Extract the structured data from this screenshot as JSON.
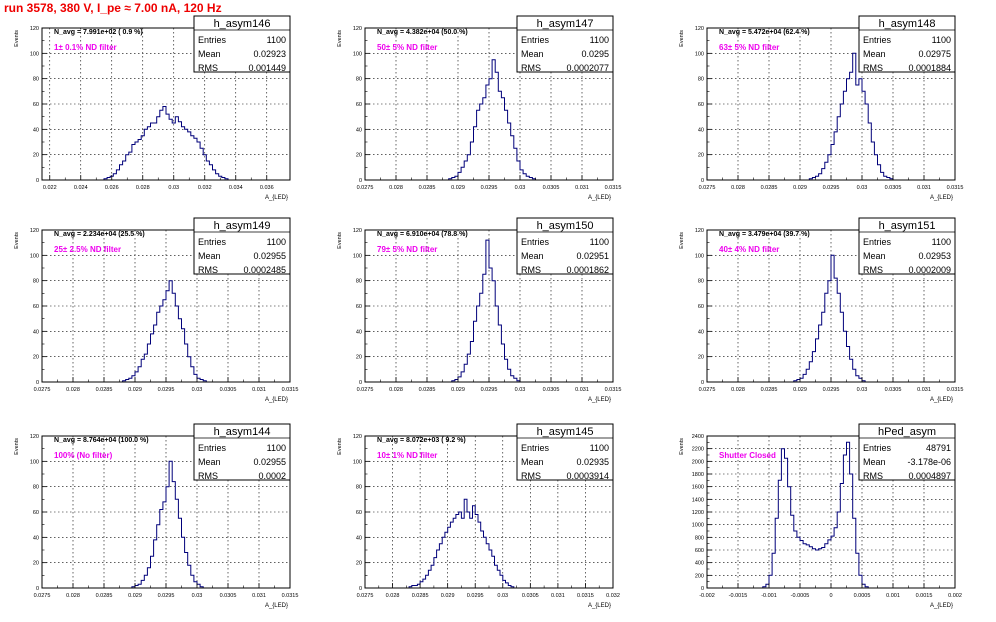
{
  "page": {
    "title": "run 3578,   380 V, I_pe ≈ 7.00 nA, 120 Hz"
  },
  "style": {
    "histogram_color": "#00007a",
    "frame_color": "#000000",
    "grid_color": "#000000",
    "title_color": "#ee0000",
    "annotation_color": "#ee00ee",
    "background": "#ffffff"
  },
  "chart_data": [
    {
      "type": "histogram",
      "name": "h_asym146",
      "stats": {
        "Entries": "1100",
        "Mean": "0.02923",
        "RMS": "0.001449"
      },
      "navg": "N_avg = 7.991e+02 ( 0.9 %)",
      "note": "1± 0.1% ND filter",
      "xlabel": "A_{LED}",
      "ylabel": "Events",
      "xlim": [
        0.0215,
        0.0375
      ],
      "ylim": [
        0,
        120
      ],
      "xticks": [
        0.022,
        0.024,
        0.026,
        0.028,
        0.03,
        0.032,
        0.034,
        0.036
      ],
      "xticklabels": [
        "0.022",
        "0.024",
        "0.026",
        "0.028",
        "0.03",
        "0.032",
        "0.034",
        "0.036"
      ],
      "yticks": [
        0,
        20,
        40,
        60,
        80,
        100,
        120
      ],
      "grid": true,
      "bins_start": 0.0255,
      "bins_width": 0.0002,
      "values": [
        1,
        2,
        3,
        5,
        8,
        12,
        15,
        20,
        22,
        28,
        30,
        32,
        35,
        40,
        42,
        45,
        45,
        50,
        55,
        58,
        52,
        48,
        45,
        50,
        46,
        42,
        40,
        38,
        35,
        33,
        30,
        25,
        20,
        15,
        12,
        8,
        5,
        3,
        2,
        1
      ]
    },
    {
      "type": "histogram",
      "name": "h_asym147",
      "stats": {
        "Entries": "1100",
        "Mean": "0.0295",
        "RMS": "0.0002077"
      },
      "navg": "N_avg = 4.382e+04 (50.0 %)",
      "note": "50± 5% ND filter",
      "xlabel": "A_{LED}",
      "ylabel": "Events",
      "xlim": [
        0.0275,
        0.0315
      ],
      "ylim": [
        0,
        120
      ],
      "xticks": [
        0.0275,
        0.028,
        0.0285,
        0.029,
        0.0295,
        0.03,
        0.0305,
        0.031,
        0.0315
      ],
      "xticklabels": [
        "0.0275",
        "0.028",
        "0.0285",
        "0.029",
        "0.0295",
        "0.03",
        "0.0305",
        "0.031",
        "0.0315"
      ],
      "yticks": [
        0,
        20,
        40,
        60,
        80,
        100,
        120
      ],
      "grid": true,
      "bins_start": 0.02885,
      "bins_width": 5e-05,
      "values": [
        1,
        2,
        3,
        6,
        10,
        15,
        20,
        30,
        42,
        55,
        60,
        65,
        75,
        80,
        95,
        85,
        70,
        65,
        55,
        45,
        35,
        25,
        15,
        8,
        5,
        3,
        2,
        1
      ]
    },
    {
      "type": "histogram",
      "name": "h_asym148",
      "stats": {
        "Entries": "1100",
        "Mean": "0.02975",
        "RMS": "0.0001884"
      },
      "navg": "N_avg = 5.472e+04 (62.4 %)",
      "note": "63± 5% ND filter",
      "xlabel": "A_{LED}",
      "ylabel": "Events",
      "xlim": [
        0.0275,
        0.0315
      ],
      "ylim": [
        0,
        120
      ],
      "xticks": [
        0.0275,
        0.028,
        0.0285,
        0.029,
        0.0295,
        0.03,
        0.0305,
        0.031,
        0.0315
      ],
      "xticklabels": [
        "0.0275",
        "0.028",
        "0.0285",
        "0.029",
        "0.0295",
        "0.03",
        "0.0305",
        "0.031",
        "0.0315"
      ],
      "yticks": [
        0,
        20,
        40,
        60,
        80,
        100,
        120
      ],
      "grid": true,
      "bins_start": 0.02915,
      "bins_width": 5e-05,
      "values": [
        1,
        2,
        3,
        5,
        9,
        14,
        20,
        28,
        38,
        50,
        60,
        70,
        80,
        85,
        100,
        75,
        80,
        70,
        60,
        45,
        30,
        20,
        12,
        6,
        3,
        2,
        1
      ]
    },
    {
      "type": "histogram",
      "name": "h_asym149",
      "stats": {
        "Entries": "1100",
        "Mean": "0.02955",
        "RMS": "0.0002485"
      },
      "navg": "N_avg = 2.234e+04 (25.5 %)",
      "note": "25± 2.5% ND filter",
      "xlabel": "A_{LED}",
      "ylabel": "Events",
      "xlim": [
        0.0275,
        0.0315
      ],
      "ylim": [
        0,
        120
      ],
      "xticks": [
        0.0275,
        0.028,
        0.0285,
        0.029,
        0.0295,
        0.03,
        0.0305,
        0.031,
        0.0315
      ],
      "xticklabels": [
        "0.0275",
        "0.028",
        "0.0285",
        "0.029",
        "0.0295",
        "0.03",
        "0.0305",
        "0.031",
        "0.0315"
      ],
      "yticks": [
        0,
        20,
        40,
        60,
        80,
        100,
        120
      ],
      "grid": true,
      "bins_start": 0.0288,
      "bins_width": 5e-05,
      "values": [
        1,
        2,
        3,
        5,
        8,
        12,
        18,
        22,
        30,
        38,
        45,
        55,
        60,
        65,
        72,
        80,
        70,
        60,
        50,
        42,
        30,
        20,
        12,
        6,
        3,
        2,
        1
      ]
    },
    {
      "type": "histogram",
      "name": "h_asym150",
      "stats": {
        "Entries": "1100",
        "Mean": "0.02951",
        "RMS": "0.0001862"
      },
      "navg": "N_avg = 6.910e+04 (78.8 %)",
      "note": "79± 5% ND filter",
      "xlabel": "A_{LED}",
      "ylabel": "Events",
      "xlim": [
        0.0275,
        0.0315
      ],
      "ylim": [
        0,
        120
      ],
      "xticks": [
        0.0275,
        0.028,
        0.0285,
        0.029,
        0.0295,
        0.03,
        0.0305,
        0.031,
        0.0315
      ],
      "xticklabels": [
        "0.0275",
        "0.028",
        "0.0285",
        "0.029",
        "0.0295",
        "0.03",
        "0.0305",
        "0.031",
        "0.0315"
      ],
      "yticks": [
        0,
        20,
        40,
        60,
        80,
        100,
        120
      ],
      "grid": true,
      "bins_start": 0.0289,
      "bins_width": 5e-05,
      "values": [
        1,
        2,
        4,
        8,
        14,
        22,
        32,
        48,
        60,
        70,
        85,
        112,
        90,
        80,
        60,
        45,
        30,
        18,
        10,
        5,
        3,
        1
      ]
    },
    {
      "type": "histogram",
      "name": "h_asym151",
      "stats": {
        "Entries": "1100",
        "Mean": "0.02953",
        "RMS": "0.0002009"
      },
      "navg": "N_avg = 3.479e+04 (39.7 %)",
      "note": "40± 4% ND filter",
      "xlabel": "A_{LED}",
      "ylabel": "Events",
      "xlim": [
        0.0275,
        0.0315
      ],
      "ylim": [
        0,
        120
      ],
      "xticks": [
        0.0275,
        0.028,
        0.0285,
        0.029,
        0.0295,
        0.03,
        0.0305,
        0.031,
        0.0315
      ],
      "xticklabels": [
        "0.0275",
        "0.028",
        "0.0285",
        "0.029",
        "0.0295",
        "0.03",
        "0.0305",
        "0.031",
        "0.0315"
      ],
      "yticks": [
        0,
        20,
        40,
        60,
        80,
        100,
        120
      ],
      "grid": true,
      "bins_start": 0.0289,
      "bins_width": 5e-05,
      "values": [
        1,
        2,
        3,
        6,
        10,
        16,
        24,
        34,
        45,
        55,
        70,
        80,
        100,
        82,
        70,
        55,
        40,
        28,
        18,
        10,
        5,
        3,
        1
      ]
    },
    {
      "type": "histogram",
      "name": "h_asym144",
      "stats": {
        "Entries": "1100",
        "Mean": "0.02955",
        "RMS": "0.0002"
      },
      "navg": "N_avg = 8.764e+04 (100.0 %)",
      "note": "100% (No filter)",
      "xlabel": "A_{LED}",
      "ylabel": "Events",
      "xlim": [
        0.0275,
        0.0315
      ],
      "ylim": [
        0,
        120
      ],
      "xticks": [
        0.0275,
        0.028,
        0.0285,
        0.029,
        0.0295,
        0.03,
        0.0305,
        0.031,
        0.0315
      ],
      "xticklabels": [
        "0.0275",
        "0.028",
        "0.0285",
        "0.029",
        "0.0295",
        "0.03",
        "0.0305",
        "0.031",
        "0.0315"
      ],
      "yticks": [
        0,
        20,
        40,
        60,
        80,
        100,
        120
      ],
      "grid": true,
      "bins_start": 0.02895,
      "bins_width": 5e-05,
      "values": [
        1,
        2,
        3,
        6,
        10,
        16,
        25,
        38,
        50,
        62,
        68,
        80,
        100,
        84,
        70,
        55,
        40,
        28,
        18,
        10,
        5,
        3,
        1
      ]
    },
    {
      "type": "histogram",
      "name": "h_asym145",
      "stats": {
        "Entries": "1100",
        "Mean": "0.02935",
        "RMS": "0.0003914"
      },
      "navg": "N_avg = 8.072e+03 ( 9.2 %)",
      "note": "10± 1% ND filter",
      "xlabel": "A_{LED}",
      "ylabel": "Events",
      "xlim": [
        0.0275,
        0.032
      ],
      "ylim": [
        0,
        120
      ],
      "xticks": [
        0.0275,
        0.028,
        0.0285,
        0.029,
        0.0295,
        0.03,
        0.0305,
        0.031,
        0.0315,
        0.032
      ],
      "xticklabels": [
        "0.0275",
        "0.028",
        "0.0285",
        "0.029",
        "0.0295",
        "0.03",
        "0.0305",
        "0.031",
        "0.0315",
        "0.032"
      ],
      "yticks": [
        0,
        20,
        40,
        60,
        80,
        100,
        120
      ],
      "grid": true,
      "bins_start": 0.0283,
      "bins_width": 5e-05,
      "values": [
        1,
        2,
        2,
        3,
        5,
        7,
        10,
        14,
        18,
        24,
        30,
        35,
        40,
        44,
        48,
        52,
        55,
        58,
        60,
        55,
        70,
        60,
        55,
        65,
        58,
        52,
        45,
        40,
        35,
        30,
        25,
        18,
        14,
        10,
        6,
        4,
        2,
        1
      ]
    },
    {
      "type": "histogram",
      "name": "hPed_asym",
      "stats": {
        "Entries": "48791",
        "Mean": "-3.178e-06",
        "RMS": "0.0004897"
      },
      "navg": "",
      "note": "Shutter Closed",
      "xlabel": "A_{LED}",
      "ylabel": "Events",
      "xlim": [
        -0.002,
        0.002
      ],
      "ylim": [
        0,
        2400
      ],
      "xticks": [
        -0.002,
        -0.0015,
        -0.001,
        -0.0005,
        0,
        0.0005,
        0.001,
        0.0015,
        0.002
      ],
      "xticklabels": [
        "-0.002",
        "-0.0015",
        "-0.001",
        "-0.0005",
        "0",
        "0.0005",
        "0.001",
        "0.0015",
        "0.002"
      ],
      "yticks": [
        0,
        200,
        400,
        600,
        800,
        1000,
        1200,
        1400,
        1600,
        1800,
        2000,
        2200,
        2400
      ],
      "grid": true,
      "bins_start": -0.0011,
      "bins_width": 5e-05,
      "values": [
        20,
        60,
        200,
        550,
        1100,
        1700,
        2200,
        2050,
        1600,
        1150,
        900,
        800,
        750,
        700,
        680,
        650,
        620,
        600,
        620,
        640,
        700,
        760,
        820,
        950,
        1200,
        1650,
        2100,
        2300,
        1800,
        1100,
        550,
        200,
        60,
        20
      ]
    }
  ]
}
